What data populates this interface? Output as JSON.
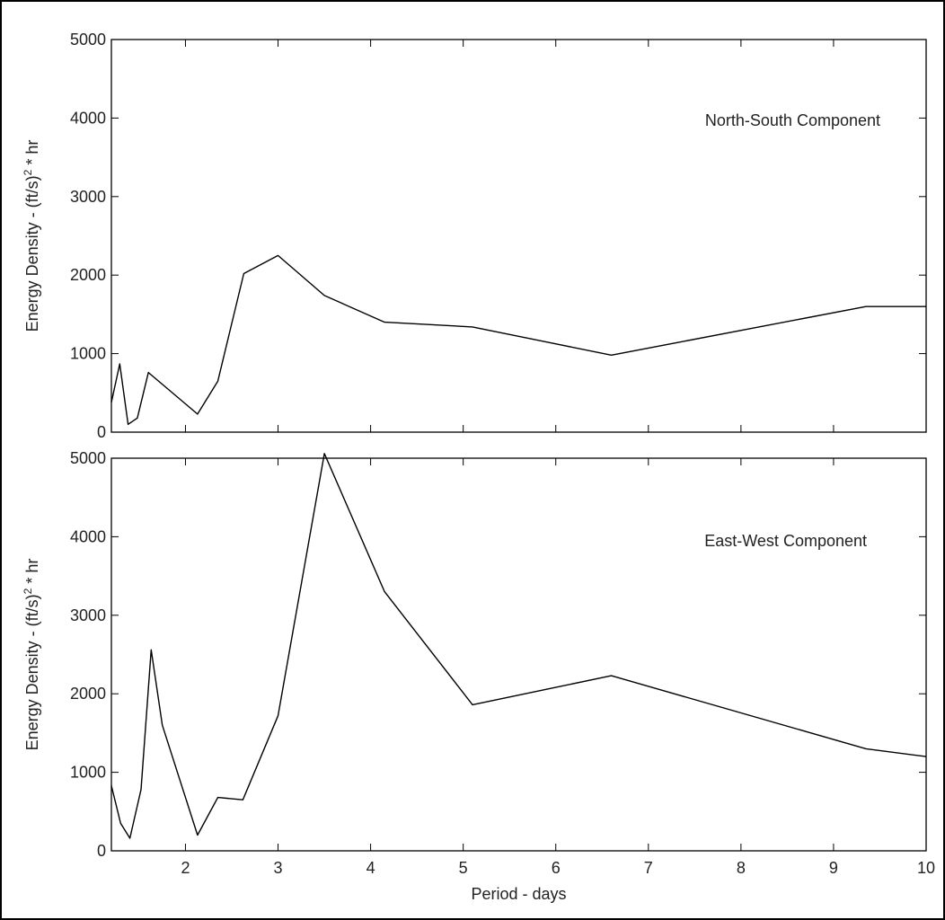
{
  "chart_data": [
    {
      "type": "line",
      "title": "",
      "annotation": "North-South Component",
      "xlabel": "",
      "ylabel": "Energy Density - (ft/s)",
      "ylabel_sup": "2",
      "ylabel_tail": " * hr",
      "xlim": [
        1.2,
        10
      ],
      "ylim": [
        0,
        5000
      ],
      "x_ticks": [
        2,
        3,
        4,
        5,
        6,
        7,
        8,
        9,
        10
      ],
      "x_ticks_labeled": false,
      "y_ticks": [
        0,
        1000,
        2000,
        3000,
        4000,
        5000
      ],
      "y_tick_labels": [
        "0",
        "1000",
        "2000",
        "3000",
        "4000",
        "5000"
      ],
      "grid": false,
      "color": "#000000",
      "series": [
        {
          "x": [
            1.2,
            1.29,
            1.38,
            1.48,
            1.6,
            2.13,
            2.35,
            2.63,
            3.0,
            3.5,
            4.15,
            5.1,
            6.6,
            9.35,
            10
          ],
          "y": [
            380,
            870,
            100,
            180,
            760,
            230,
            650,
            2020,
            2250,
            1740,
            1400,
            1340,
            980,
            1600,
            1600
          ]
        }
      ]
    },
    {
      "type": "line",
      "title": "",
      "annotation": "East-West Component",
      "xlabel": "Period - days",
      "ylabel": "Energy Density - (ft/s)",
      "ylabel_sup": "2",
      "ylabel_tail": " * hr",
      "xlim": [
        1.2,
        10
      ],
      "ylim": [
        0,
        5000
      ],
      "x_ticks": [
        2,
        3,
        4,
        5,
        6,
        7,
        8,
        9,
        10
      ],
      "x_tick_labels": [
        "2",
        "3",
        "4",
        "5",
        "6",
        "7",
        "8",
        "9",
        "10"
      ],
      "x_ticks_labeled": true,
      "y_ticks": [
        0,
        1000,
        2000,
        3000,
        4000,
        5000
      ],
      "y_tick_labels": [
        "0",
        "1000",
        "2000",
        "3000",
        "4000",
        "5000"
      ],
      "grid": false,
      "color": "#000000",
      "series": [
        {
          "x": [
            1.2,
            1.3,
            1.4,
            1.52,
            1.63,
            1.75,
            2.13,
            2.35,
            2.62,
            3.0,
            3.5,
            4.15,
            5.1,
            6.6,
            9.35,
            10
          ],
          "y": [
            830,
            350,
            160,
            780,
            2560,
            1600,
            200,
            680,
            650,
            1720,
            5060,
            3300,
            1860,
            2230,
            1300,
            1200
          ]
        }
      ]
    }
  ]
}
